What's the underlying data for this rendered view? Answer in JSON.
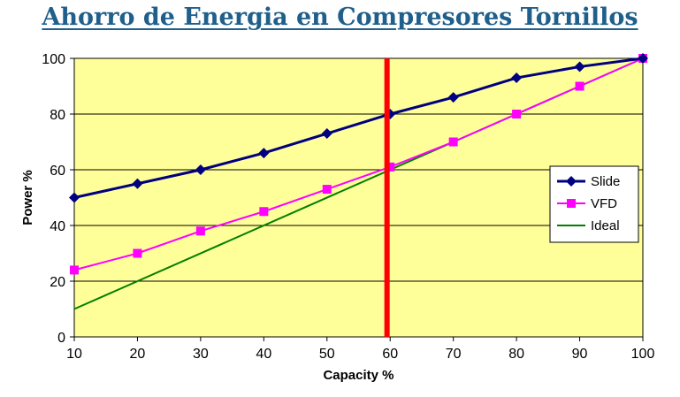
{
  "page_title": "Ahorro de Energia en Compresores Tornillos",
  "colors": {
    "plot_bg": "#ffff99",
    "title": "#1f5f8b",
    "slide": "#000080",
    "vfd": "#ff00ff",
    "ideal": "#008000",
    "marker_line": "#ff0000"
  },
  "chart_data": {
    "type": "line",
    "title": "",
    "xlabel": "Capacity %",
    "ylabel": "Power %",
    "xlim": [
      10,
      100
    ],
    "ylim": [
      0,
      100
    ],
    "x_ticks": [
      "10",
      "20",
      "30",
      "40",
      "50",
      "60",
      "70",
      "80",
      "90",
      "100"
    ],
    "y_ticks": [
      "0",
      "20",
      "40",
      "60",
      "80",
      "100"
    ],
    "grid": "horizontal",
    "legend_position": "right",
    "vertical_marker_x": 59.5,
    "series": [
      {
        "name": "Slide",
        "marker": "diamond",
        "x": [
          10,
          20,
          30,
          40,
          50,
          60,
          70,
          80,
          90,
          100
        ],
        "values": [
          50,
          55,
          60,
          66,
          73,
          80,
          86,
          93,
          97,
          100
        ]
      },
      {
        "name": "VFD",
        "marker": "square",
        "x": [
          10,
          20,
          30,
          40,
          50,
          60,
          70,
          80,
          90,
          100
        ],
        "values": [
          24,
          30,
          38,
          45,
          53,
          61,
          70,
          80,
          90,
          100
        ]
      },
      {
        "name": "Ideal",
        "marker": "none",
        "x": [
          10,
          100
        ],
        "values": [
          10,
          100
        ]
      }
    ]
  }
}
